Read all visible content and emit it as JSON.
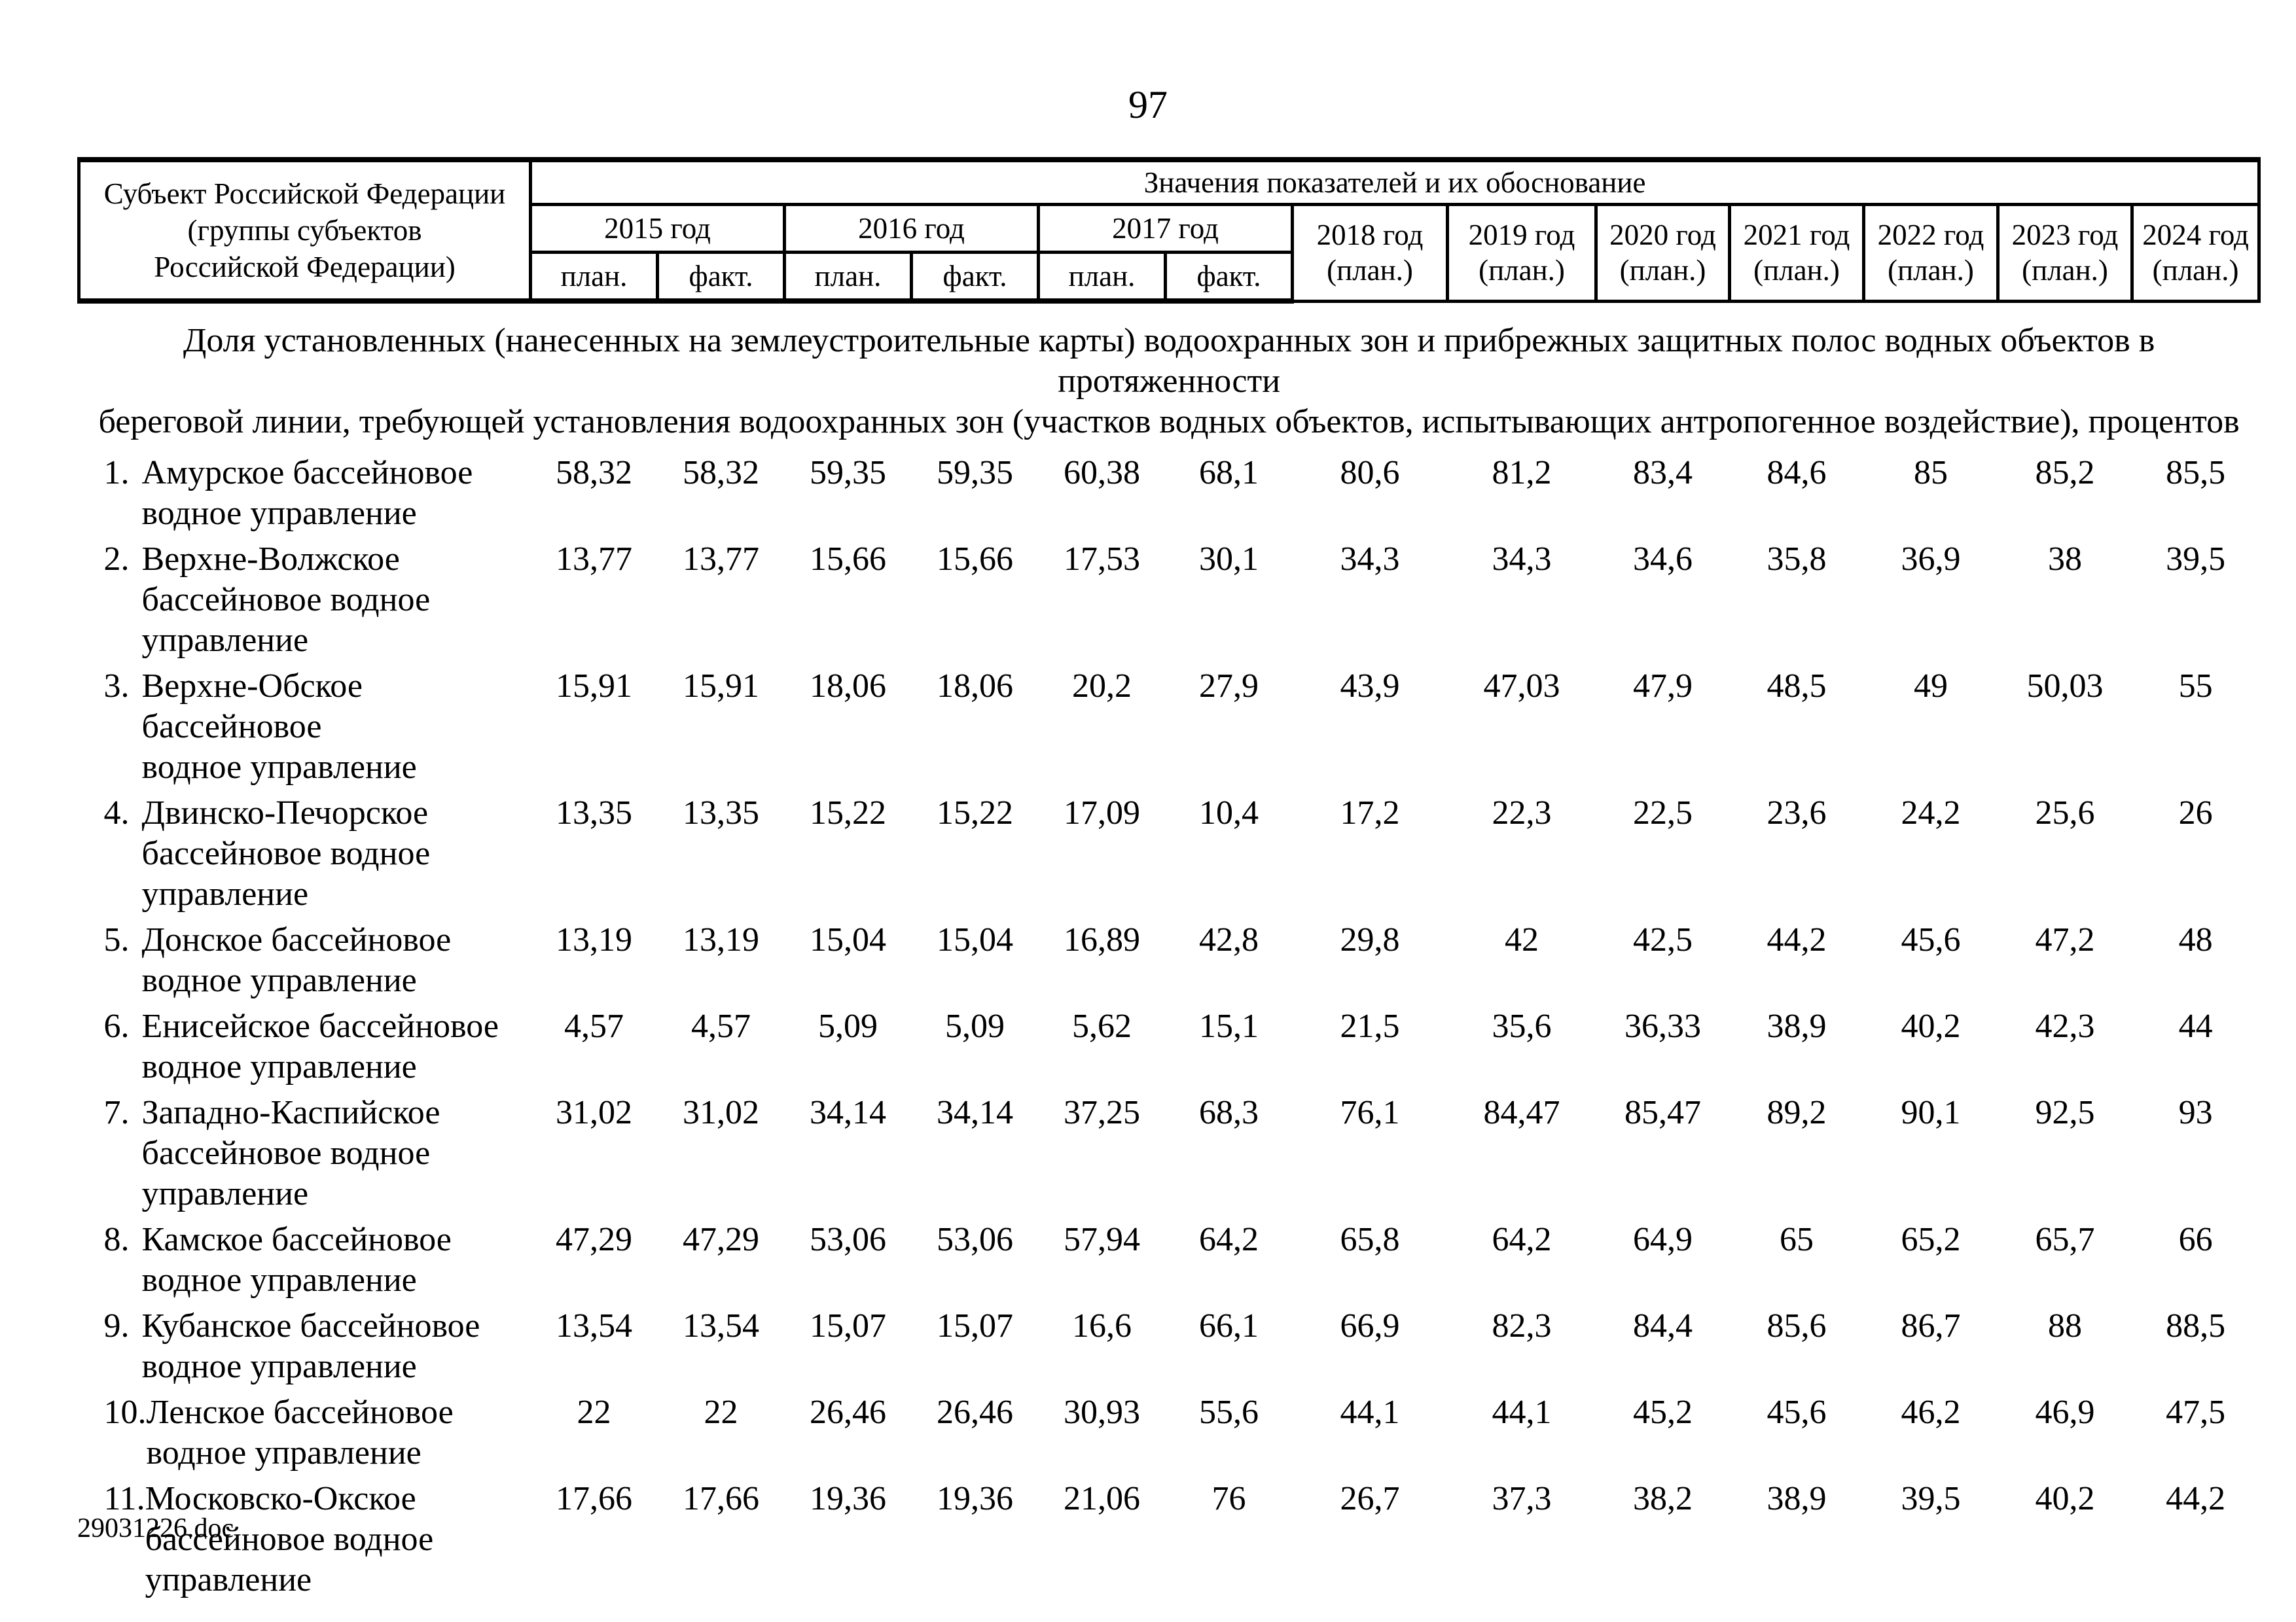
{
  "page_number": "97",
  "footer_filename": "29031226.doc",
  "table": {
    "header": {
      "subject": "Субъект Российской Федерации\n(группы субъектов\nРоссийской Федерации)",
      "values_title": "Значения показателей и их обоснование",
      "year_groups": [
        {
          "label": "2015 год",
          "sub": [
            "план.",
            "факт."
          ]
        },
        {
          "label": "2016 год",
          "sub": [
            "план.",
            "факт."
          ]
        },
        {
          "label": "2017 год",
          "sub": [
            "план.",
            "факт."
          ]
        },
        {
          "label": "2018 год",
          "plan": "(план.)"
        },
        {
          "label": "2019 год",
          "plan": "(план.)"
        },
        {
          "label": "2020 год",
          "plan": "(план.)"
        },
        {
          "label": "2021 год",
          "plan": "(план.)"
        },
        {
          "label": "2022 год",
          "plan": "(план.)"
        },
        {
          "label": "2023 год",
          "plan": "(план.)"
        },
        {
          "label": "2024 год",
          "plan": "(план.)"
        }
      ]
    },
    "section_title": "Доля установленных (нанесенных на землеустроительные карты) водоохранных зон и прибрежных защитных полос водных объектов в протяженности\nбереговой линии, требующей установления водоохранных зон (участков водных объектов, испытывающих антропогенное воздействие), процентов",
    "rows": [
      {
        "num": "1.",
        "name": "Амурское бассейновое\nводное управление",
        "values": [
          "58,32",
          "58,32",
          "59,35",
          "59,35",
          "60,38",
          "68,1",
          "80,6",
          "81,2",
          "83,4",
          "84,6",
          "85",
          "85,2",
          "85,5"
        ]
      },
      {
        "num": "2.",
        "name": "Верхне-Волжское\nбассейновое водное\nуправление",
        "values": [
          "13,77",
          "13,77",
          "15,66",
          "15,66",
          "17,53",
          "30,1",
          "34,3",
          "34,3",
          "34,6",
          "35,8",
          "36,9",
          "38",
          "39,5"
        ]
      },
      {
        "num": "3.",
        "name": "Верхне-Обское бассейновое\nводное управление",
        "values": [
          "15,91",
          "15,91",
          "18,06",
          "18,06",
          "20,2",
          "27,9",
          "43,9",
          "47,03",
          "47,9",
          "48,5",
          "49",
          "50,03",
          "55"
        ]
      },
      {
        "num": "4.",
        "name": "Двинско-Печорское\nбассейновое водное\nуправление",
        "values": [
          "13,35",
          "13,35",
          "15,22",
          "15,22",
          "17,09",
          "10,4",
          "17,2",
          "22,3",
          "22,5",
          "23,6",
          "24,2",
          "25,6",
          "26"
        ]
      },
      {
        "num": "5.",
        "name": "Донское бассейновое\nводное управление",
        "values": [
          "13,19",
          "13,19",
          "15,04",
          "15,04",
          "16,89",
          "42,8",
          "29,8",
          "42",
          "42,5",
          "44,2",
          "45,6",
          "47,2",
          "48"
        ]
      },
      {
        "num": "6.",
        "name": "Енисейское бассейновое\nводное управление",
        "values": [
          "4,57",
          "4,57",
          "5,09",
          "5,09",
          "5,62",
          "15,1",
          "21,5",
          "35,6",
          "36,33",
          "38,9",
          "40,2",
          "42,3",
          "44"
        ]
      },
      {
        "num": "7.",
        "name": "Западно-Каспийское\nбассейновое водное\nуправление",
        "values": [
          "31,02",
          "31,02",
          "34,14",
          "34,14",
          "37,25",
          "68,3",
          "76,1",
          "84,47",
          "85,47",
          "89,2",
          "90,1",
          "92,5",
          "93"
        ]
      },
      {
        "num": "8.",
        "name": "Камское бассейновое\nводное управление",
        "values": [
          "47,29",
          "47,29",
          "53,06",
          "53,06",
          "57,94",
          "64,2",
          "65,8",
          "64,2",
          "64,9",
          "65",
          "65,2",
          "65,7",
          "66"
        ]
      },
      {
        "num": "9.",
        "name": "Кубанское бассейновое\nводное управление",
        "values": [
          "13,54",
          "13,54",
          "15,07",
          "15,07",
          "16,6",
          "66,1",
          "66,9",
          "82,3",
          "84,4",
          "85,6",
          "86,7",
          "88",
          "88,5"
        ]
      },
      {
        "num": "10.",
        "name": "Ленское бассейновое\nводное управление",
        "values": [
          "22",
          "22",
          "26,46",
          "26,46",
          "30,93",
          "55,6",
          "44,1",
          "44,1",
          "45,2",
          "45,6",
          "46,2",
          "46,9",
          "47,5"
        ]
      },
      {
        "num": "11.",
        "name": "Московско-Окское\nбассейновое водное\nуправление",
        "values": [
          "17,66",
          "17,66",
          "19,36",
          "19,36",
          "21,06",
          "76",
          "26,7",
          "37,3",
          "38,2",
          "38,9",
          "39,5",
          "40,2",
          "44,2"
        ]
      }
    ]
  }
}
